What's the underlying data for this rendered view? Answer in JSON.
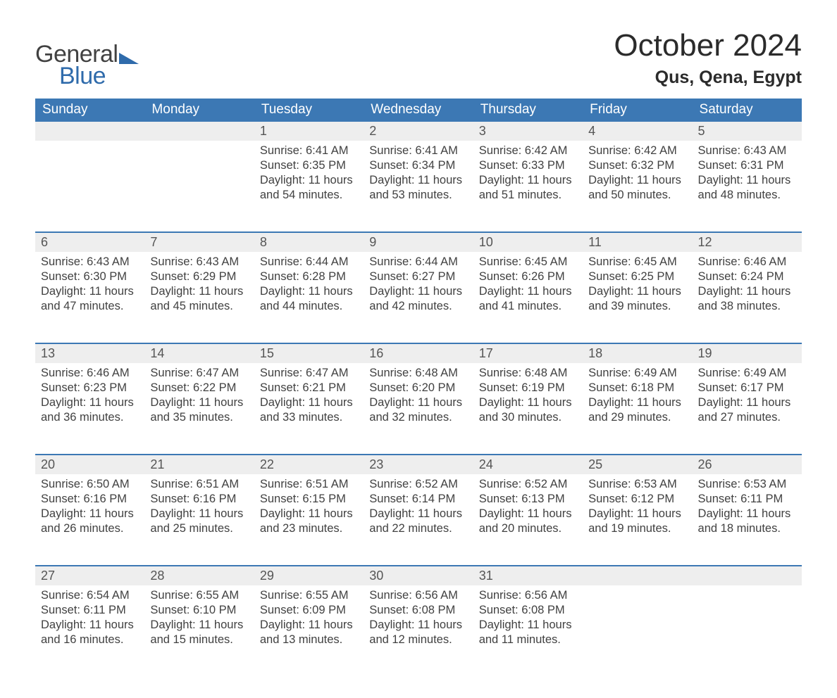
{
  "branding": {
    "logo_word1": "General",
    "logo_word2": "Blue",
    "logo_word1_color": "#414141",
    "logo_word2_color": "#2f6bab",
    "triangle_color": "#2f6bab"
  },
  "header": {
    "title": "October 2024",
    "location": "Qus, Qena, Egypt",
    "title_fontsize": 44,
    "location_fontsize": 25
  },
  "calendar": {
    "type": "table",
    "header_bg": "#3c78b4",
    "header_text_color": "#ffffff",
    "row_separator_color": "#3c78b4",
    "daynum_bg": "#eeeeee",
    "body_text_color": "#414141",
    "columns": [
      "Sunday",
      "Monday",
      "Tuesday",
      "Wednesday",
      "Thursday",
      "Friday",
      "Saturday"
    ],
    "weeks": [
      [
        null,
        null,
        {
          "day": "1",
          "sunrise": "6:41 AM",
          "sunset": "6:35 PM",
          "daylight": "11 hours and 54 minutes."
        },
        {
          "day": "2",
          "sunrise": "6:41 AM",
          "sunset": "6:34 PM",
          "daylight": "11 hours and 53 minutes."
        },
        {
          "day": "3",
          "sunrise": "6:42 AM",
          "sunset": "6:33 PM",
          "daylight": "11 hours and 51 minutes."
        },
        {
          "day": "4",
          "sunrise": "6:42 AM",
          "sunset": "6:32 PM",
          "daylight": "11 hours and 50 minutes."
        },
        {
          "day": "5",
          "sunrise": "6:43 AM",
          "sunset": "6:31 PM",
          "daylight": "11 hours and 48 minutes."
        }
      ],
      [
        {
          "day": "6",
          "sunrise": "6:43 AM",
          "sunset": "6:30 PM",
          "daylight": "11 hours and 47 minutes."
        },
        {
          "day": "7",
          "sunrise": "6:43 AM",
          "sunset": "6:29 PM",
          "daylight": "11 hours and 45 minutes."
        },
        {
          "day": "8",
          "sunrise": "6:44 AM",
          "sunset": "6:28 PM",
          "daylight": "11 hours and 44 minutes."
        },
        {
          "day": "9",
          "sunrise": "6:44 AM",
          "sunset": "6:27 PM",
          "daylight": "11 hours and 42 minutes."
        },
        {
          "day": "10",
          "sunrise": "6:45 AM",
          "sunset": "6:26 PM",
          "daylight": "11 hours and 41 minutes."
        },
        {
          "day": "11",
          "sunrise": "6:45 AM",
          "sunset": "6:25 PM",
          "daylight": "11 hours and 39 minutes."
        },
        {
          "day": "12",
          "sunrise": "6:46 AM",
          "sunset": "6:24 PM",
          "daylight": "11 hours and 38 minutes."
        }
      ],
      [
        {
          "day": "13",
          "sunrise": "6:46 AM",
          "sunset": "6:23 PM",
          "daylight": "11 hours and 36 minutes."
        },
        {
          "day": "14",
          "sunrise": "6:47 AM",
          "sunset": "6:22 PM",
          "daylight": "11 hours and 35 minutes."
        },
        {
          "day": "15",
          "sunrise": "6:47 AM",
          "sunset": "6:21 PM",
          "daylight": "11 hours and 33 minutes."
        },
        {
          "day": "16",
          "sunrise": "6:48 AM",
          "sunset": "6:20 PM",
          "daylight": "11 hours and 32 minutes."
        },
        {
          "day": "17",
          "sunrise": "6:48 AM",
          "sunset": "6:19 PM",
          "daylight": "11 hours and 30 minutes."
        },
        {
          "day": "18",
          "sunrise": "6:49 AM",
          "sunset": "6:18 PM",
          "daylight": "11 hours and 29 minutes."
        },
        {
          "day": "19",
          "sunrise": "6:49 AM",
          "sunset": "6:17 PM",
          "daylight": "11 hours and 27 minutes."
        }
      ],
      [
        {
          "day": "20",
          "sunrise": "6:50 AM",
          "sunset": "6:16 PM",
          "daylight": "11 hours and 26 minutes."
        },
        {
          "day": "21",
          "sunrise": "6:51 AM",
          "sunset": "6:16 PM",
          "daylight": "11 hours and 25 minutes."
        },
        {
          "day": "22",
          "sunrise": "6:51 AM",
          "sunset": "6:15 PM",
          "daylight": "11 hours and 23 minutes."
        },
        {
          "day": "23",
          "sunrise": "6:52 AM",
          "sunset": "6:14 PM",
          "daylight": "11 hours and 22 minutes."
        },
        {
          "day": "24",
          "sunrise": "6:52 AM",
          "sunset": "6:13 PM",
          "daylight": "11 hours and 20 minutes."
        },
        {
          "day": "25",
          "sunrise": "6:53 AM",
          "sunset": "6:12 PM",
          "daylight": "11 hours and 19 minutes."
        },
        {
          "day": "26",
          "sunrise": "6:53 AM",
          "sunset": "6:11 PM",
          "daylight": "11 hours and 18 minutes."
        }
      ],
      [
        {
          "day": "27",
          "sunrise": "6:54 AM",
          "sunset": "6:11 PM",
          "daylight": "11 hours and 16 minutes."
        },
        {
          "day": "28",
          "sunrise": "6:55 AM",
          "sunset": "6:10 PM",
          "daylight": "11 hours and 15 minutes."
        },
        {
          "day": "29",
          "sunrise": "6:55 AM",
          "sunset": "6:09 PM",
          "daylight": "11 hours and 13 minutes."
        },
        {
          "day": "30",
          "sunrise": "6:56 AM",
          "sunset": "6:08 PM",
          "daylight": "11 hours and 12 minutes."
        },
        {
          "day": "31",
          "sunrise": "6:56 AM",
          "sunset": "6:08 PM",
          "daylight": "11 hours and 11 minutes."
        },
        null,
        null
      ]
    ],
    "labels": {
      "sunrise": "Sunrise:",
      "sunset": "Sunset:",
      "daylight": "Daylight:"
    }
  }
}
